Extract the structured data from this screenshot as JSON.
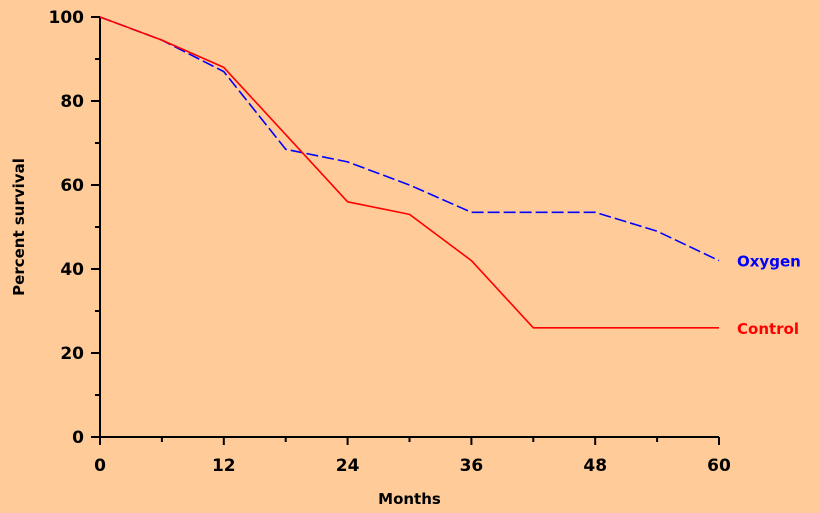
{
  "chart_data": {
    "type": "line",
    "title": "",
    "xlabel": "Months",
    "ylabel": "Percent survival",
    "xlim": [
      0,
      60
    ],
    "ylim": [
      0,
      100
    ],
    "x_ticks": [
      0,
      12,
      24,
      36,
      48,
      60
    ],
    "x_tick_labels": [
      "0",
      "12",
      "24",
      "36",
      "48",
      "60"
    ],
    "x_minor_ticks": [
      6,
      18,
      30,
      42,
      54
    ],
    "y_ticks": [
      0,
      20,
      40,
      60,
      80,
      100
    ],
    "y_tick_labels": [
      "0",
      "20",
      "40",
      "60",
      "80",
      "100"
    ],
    "y_minor_ticks": [
      10,
      30,
      50,
      70,
      90
    ],
    "grid": false,
    "legend": "inline-right",
    "background_color": "#FFCC99",
    "axis_color": "#000000",
    "series": [
      {
        "name": "Oxygen",
        "color": "#0000FF",
        "style": "dashed",
        "x": [
          0,
          6,
          12,
          18,
          24,
          30,
          36,
          42,
          48,
          54,
          60
        ],
        "y": [
          100,
          94.5,
          87,
          68.5,
          65.5,
          60,
          53.5,
          53.5,
          53.5,
          49,
          42
        ]
      },
      {
        "name": "Control",
        "color": "#FF0000",
        "style": "solid",
        "x": [
          0,
          6,
          12,
          18,
          24,
          30,
          36,
          42,
          48,
          54,
          60
        ],
        "y": [
          100,
          94.5,
          88,
          72,
          56,
          53,
          42,
          26,
          26,
          26,
          26
        ]
      }
    ]
  }
}
